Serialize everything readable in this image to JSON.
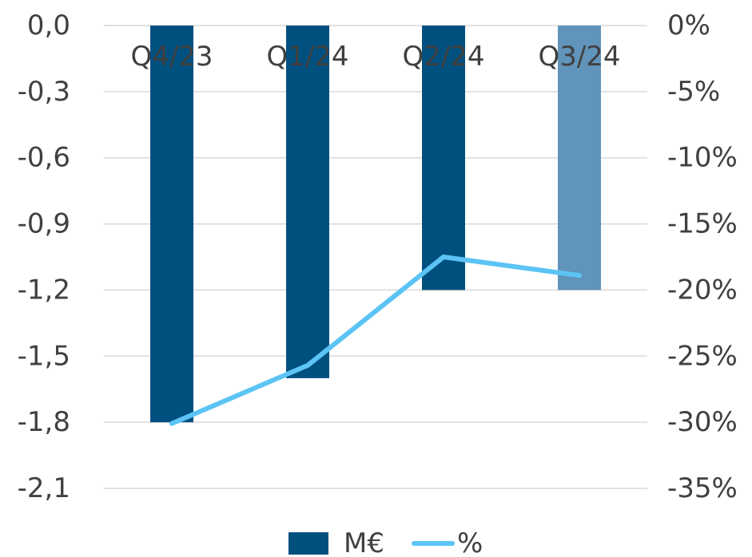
{
  "chart_data": {
    "type": "bar",
    "title": "",
    "xlabel": "",
    "ylabel": "",
    "categories": [
      "Q4/23",
      "Q1/24",
      "Q2/24",
      "Q3/24"
    ],
    "series": [
      {
        "name": "M€",
        "type": "bar",
        "axis": "left",
        "values": [
          -1.8,
          -1.6,
          -1.2,
          -1.2
        ],
        "colors": [
          "#00507F",
          "#00507F",
          "#00507F",
          "#6194BA"
        ]
      },
      {
        "name": "%",
        "type": "line",
        "axis": "right",
        "values": [
          -30.1,
          -25.7,
          -17.5,
          -18.9
        ],
        "color": "#5BC4F5"
      }
    ],
    "y_left": {
      "ylim": [
        -2.1,
        0
      ],
      "ticks": [
        0,
        -0.3,
        -0.6,
        -0.9,
        -1.2,
        -1.5,
        -1.8,
        -2.1
      ],
      "tick_labels": [
        "0,0",
        "-0,3",
        "-0,6",
        "-0,9",
        "-1,2",
        "-1,5",
        "-1,8",
        "-2,1"
      ]
    },
    "y_right": {
      "ylim": [
        -35,
        0
      ],
      "ticks": [
        0,
        -5,
        -10,
        -15,
        -20,
        -25,
        -30,
        -35
      ],
      "tick_labels": [
        "0%",
        "-5%",
        "-10%",
        "-15%",
        "-20%",
        "-25%",
        "-30%",
        "-35%"
      ]
    },
    "grid": true,
    "legend_position": "bottom-center",
    "legend": [
      {
        "label": "M€",
        "marker": "bar",
        "color": "#00507F"
      },
      {
        "label": "%",
        "marker": "line",
        "color": "#5BC4F5"
      }
    ],
    "gridline_color": "#D9D9D9",
    "text_color": "#404040"
  }
}
